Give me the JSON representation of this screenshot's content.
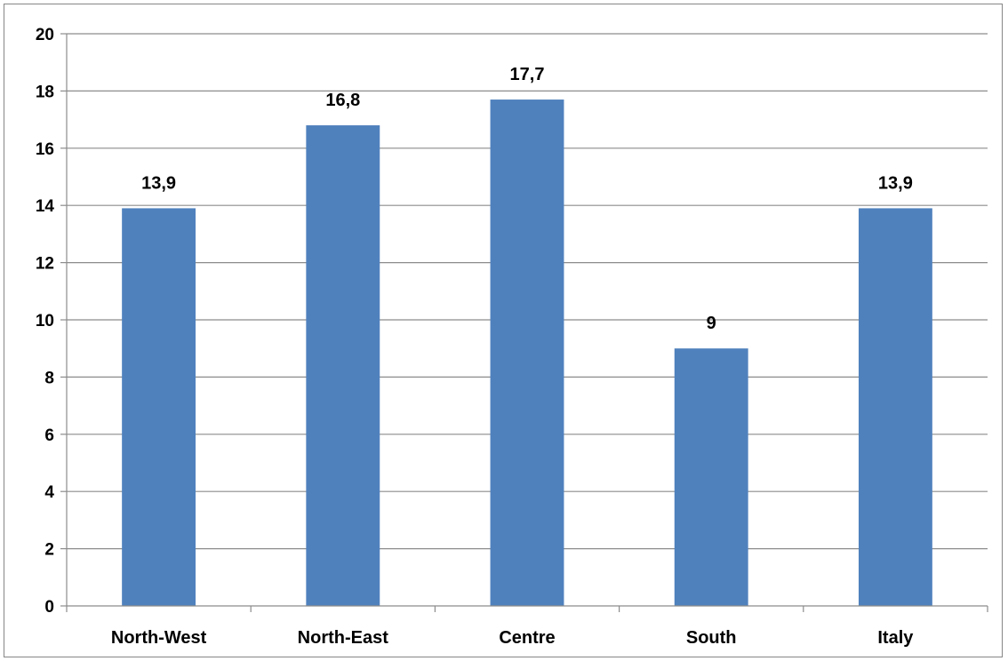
{
  "chart_data": {
    "type": "bar",
    "categories": [
      "North-West",
      "North-East",
      "Centre",
      "South",
      "Italy"
    ],
    "values": [
      13.9,
      16.8,
      17.7,
      9,
      13.9
    ],
    "data_labels": [
      "13,9",
      "16,8",
      "17,7",
      "9",
      "13,9"
    ],
    "title": "",
    "xlabel": "",
    "ylabel": "",
    "ylim": [
      0,
      20
    ],
    "yticks": [
      0,
      2,
      4,
      6,
      8,
      10,
      12,
      14,
      16,
      18,
      20
    ],
    "ytick_labels": [
      "0",
      "2",
      "4",
      "6",
      "8",
      "10",
      "12",
      "14",
      "16",
      "18",
      "20"
    ],
    "grid": true,
    "legend": "none",
    "bar_color": "#4f81bd",
    "grid_color": "#8c8c8c"
  }
}
